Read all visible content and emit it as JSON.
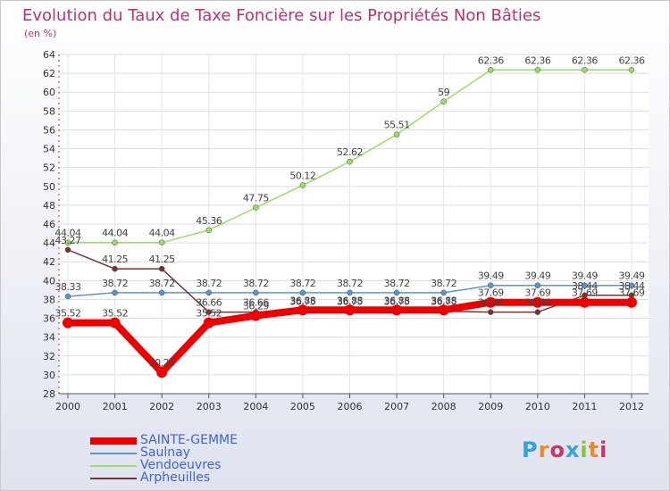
{
  "header": {
    "title": "Evolution du Taux de Taxe Foncière sur les Propriétés Non Bâties",
    "unit": "(en %)"
  },
  "logo": {
    "text": "Proxiti"
  },
  "chart_data": {
    "type": "line",
    "title": "Evolution du Taux de Taxe Foncière sur les Propriétés Non Bâties",
    "ylabel": "(en %)",
    "xlabel": "",
    "categories": [
      "2000",
      "2001",
      "2002",
      "2003",
      "2004",
      "2005",
      "2006",
      "2007",
      "2008",
      "2009",
      "2010",
      "2011",
      "2012"
    ],
    "ylim": [
      28,
      64
    ],
    "yticks": [
      28,
      30,
      32,
      34,
      36,
      38,
      40,
      42,
      44,
      46,
      48,
      50,
      52,
      54,
      56,
      58,
      60,
      62,
      64
    ],
    "grid": true,
    "legend_position": "bottom-left",
    "series": [
      {
        "name": "SAINTE-GEMME",
        "color": "#ee0000",
        "values": [
          35.52,
          35.52,
          30.26,
          35.52,
          36.29,
          36.88,
          36.88,
          36.88,
          36.88,
          37.69,
          37.69,
          37.69,
          37.69
        ],
        "labels": [
          "35.52",
          "35.52",
          "30.26",
          "35.52",
          "36.29",
          "36.88",
          "36.88",
          "36.88",
          "36.88",
          "37.69",
          "37.69",
          "37.69",
          "37.69"
        ]
      },
      {
        "name": "Saulnay",
        "color": "#5a96cc",
        "values": [
          38.33,
          38.72,
          38.72,
          38.72,
          38.72,
          38.72,
          38.72,
          38.72,
          38.72,
          39.49,
          39.49,
          39.49,
          39.49
        ],
        "labels": [
          "38.33",
          "38.72",
          "38.72",
          "38.72",
          "38.72",
          "38.72",
          "38.72",
          "38.72",
          "38.72",
          "39.49",
          "39.49",
          "39.49",
          "39.49"
        ]
      },
      {
        "name": "Vendoeuvres",
        "color": "#99dd66",
        "values": [
          44.04,
          44.04,
          44.04,
          45.36,
          47.75,
          50.12,
          52.62,
          55.51,
          59,
          62.36,
          62.36,
          62.36,
          62.36
        ],
        "labels": [
          "44.04",
          "44.04",
          "44.04",
          "45.36",
          "47.75",
          "50.12",
          "52.62",
          "55.51",
          "59",
          "62.36",
          "62.36",
          "62.36",
          "62.36"
        ]
      },
      {
        "name": "Arpheuilles",
        "color": "#773333",
        "values": [
          43.27,
          41.25,
          41.25,
          36.66,
          36.66,
          36.75,
          36.75,
          36.75,
          36.75,
          36.66,
          36.66,
          38.44,
          38.44
        ],
        "labels": [
          "43.27",
          "41.25",
          "41.25",
          "36.66",
          "36.66",
          "36.75",
          "36.75",
          "36.75",
          "36.75",
          "36.66",
          "36.66",
          "38.44",
          "38.44"
        ]
      }
    ]
  }
}
